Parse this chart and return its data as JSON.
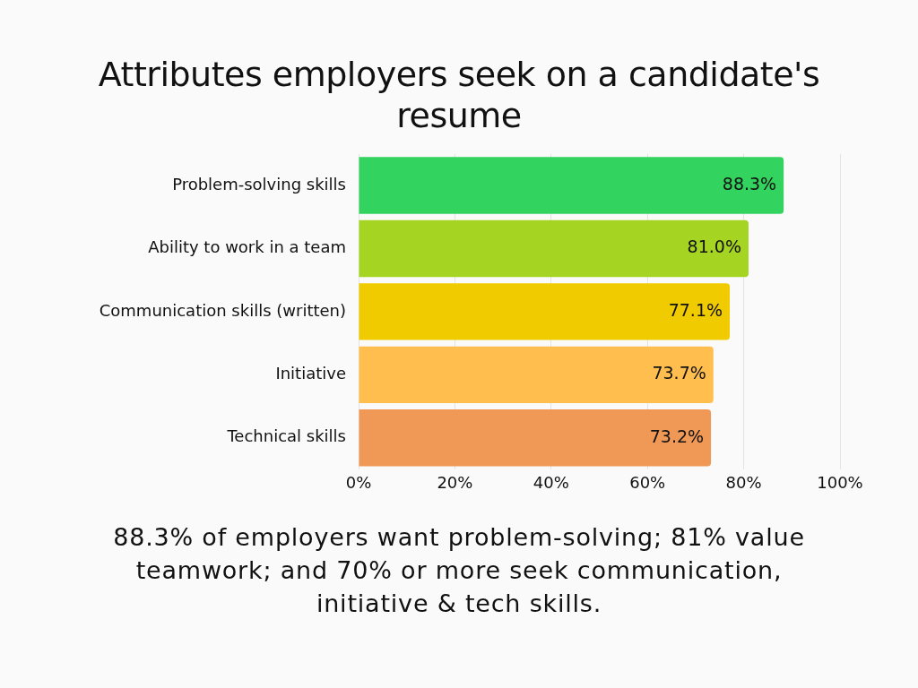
{
  "chart_data": {
    "type": "bar",
    "orientation": "horizontal",
    "title": "Attributes employers seek on a candidate's resume",
    "categories": [
      "Problem-solving skills",
      "Ability to work in a team",
      "Communication skills (written)",
      "Initiative",
      "Technical skills"
    ],
    "values": [
      88.3,
      81.0,
      77.1,
      73.7,
      73.2
    ],
    "colors": [
      "#33d35f",
      "#a6d423",
      "#f0cb00",
      "#ffbe4d",
      "#f09856"
    ],
    "value_labels": [
      "88.3%",
      "81.0%",
      "77.1%",
      "73.7%",
      "73.2%"
    ],
    "xlim": [
      0,
      100
    ],
    "xticks": [
      {
        "value": 0,
        "label": "0%"
      },
      {
        "value": 20,
        "label": "20%"
      },
      {
        "value": 40,
        "label": "40%"
      },
      {
        "value": 60,
        "label": "60%"
      },
      {
        "value": 80,
        "label": "80%"
      },
      {
        "value": 100,
        "label": "100%"
      }
    ],
    "grid": "x",
    "annotations": [
      "88.3% of employers want problem-solving; 81% value teamwork; and 70% or more seek communication, initiative & tech skills."
    ]
  }
}
